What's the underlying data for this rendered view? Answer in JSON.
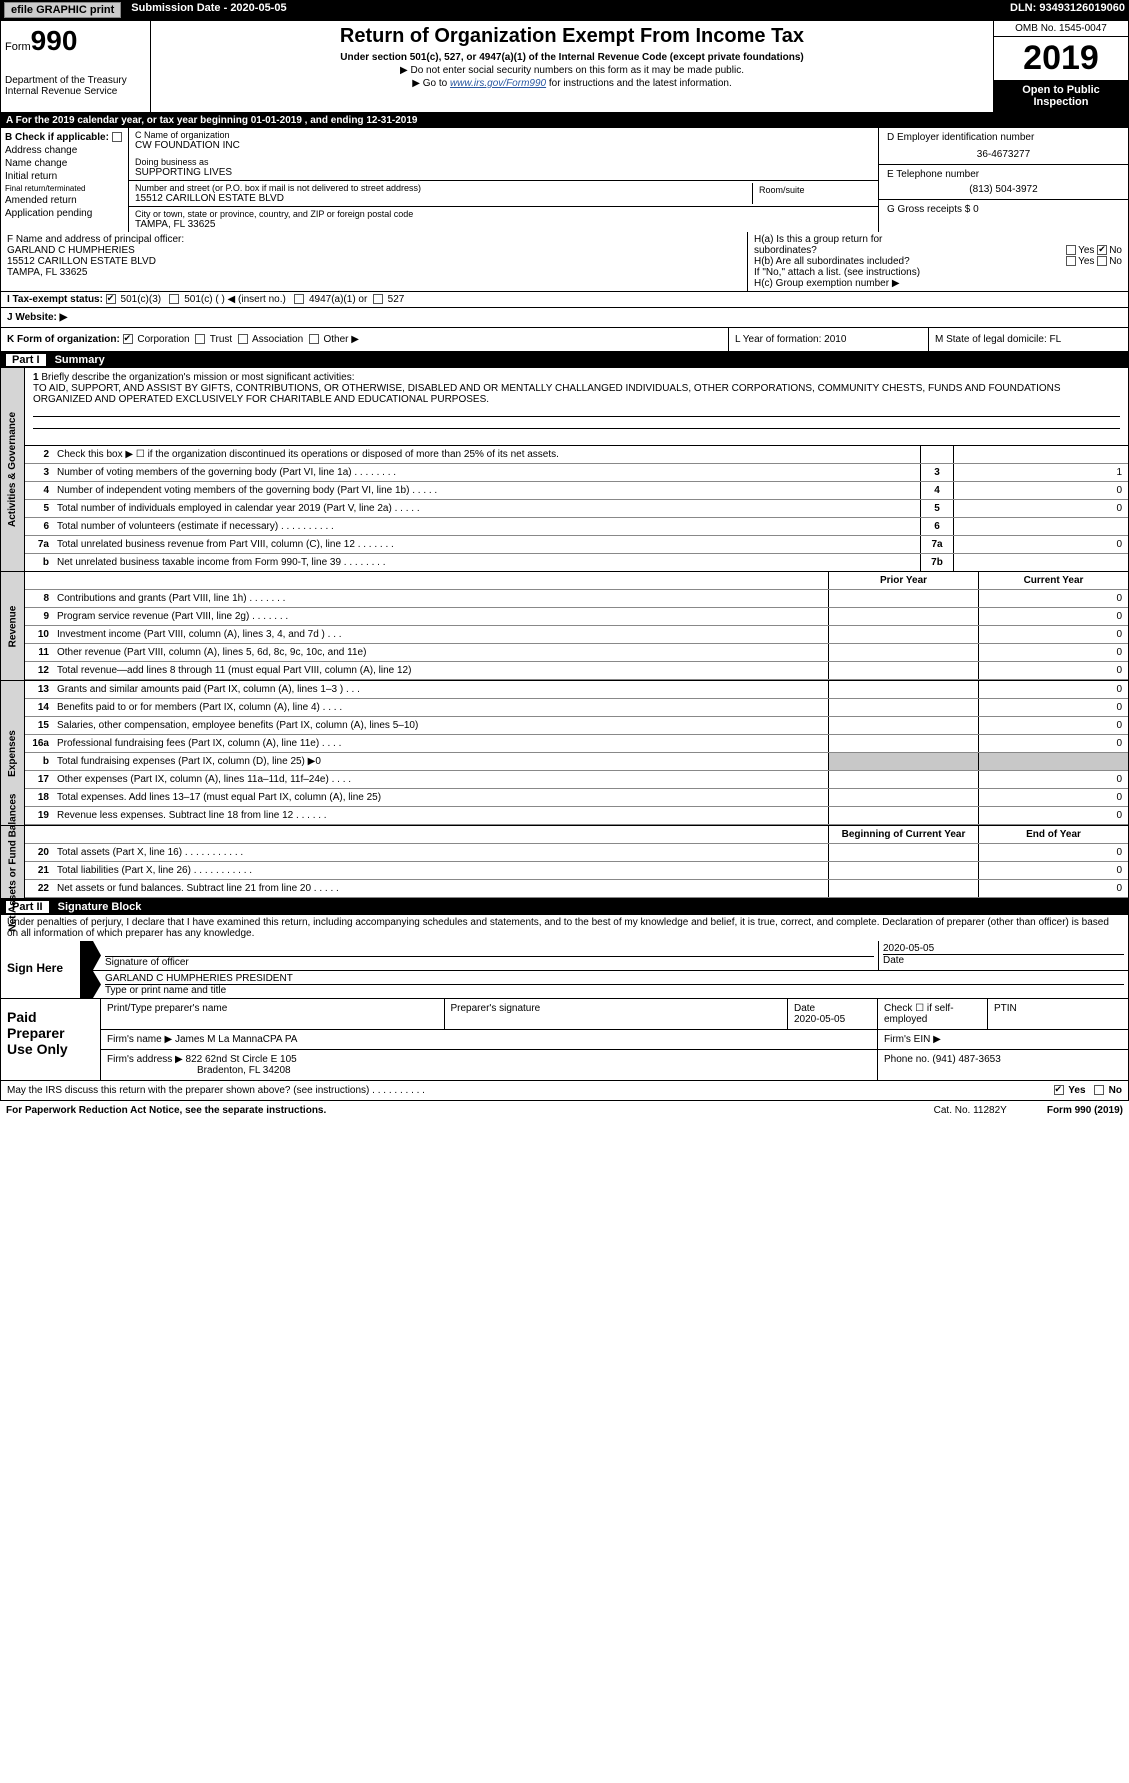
{
  "topbar": {
    "efile": "efile GRAPHIC print",
    "submission": "Submission Date - 2020-05-05",
    "dln": "DLN: 93493126019060"
  },
  "header": {
    "form_prefix": "Form",
    "form_no": "990",
    "dept": "Department of the Treasury",
    "irs": "Internal Revenue Service",
    "title": "Return of Organization Exempt From Income Tax",
    "sub1": "Under section 501(c), 527, or 4947(a)(1) of the Internal Revenue Code (except private foundations)",
    "sub2a": "▶ Do not enter social security numbers on this form as it may be made public.",
    "sub2b_pre": "▶ Go to ",
    "sub2b_link": "www.irs.gov/Form990",
    "sub2b_post": " for instructions and the latest information.",
    "omb": "OMB No. 1545-0047",
    "year": "2019",
    "open": "Open to Public Inspection"
  },
  "calrow": "A   For the 2019 calendar year, or tax year beginning 01-01-2019       , and ending 12-31-2019",
  "boxB": {
    "label": "B  Check if applicable:",
    "items": [
      "Address change",
      "Name change",
      "Initial return",
      "Final return/terminated",
      "Amended return",
      "Application pending"
    ]
  },
  "boxC": {
    "name_lbl": "C Name of organization",
    "name": "CW FOUNDATION INC",
    "dba_lbl": "Doing business as",
    "dba": "SUPPORTING LIVES",
    "addr_lbl": "Number and street (or P.O. box if mail is not delivered to street address)",
    "addr": "15512 CARILLON ESTATE BLVD",
    "room_lbl": "Room/suite",
    "city_lbl": "City or town, state or province, country, and ZIP or foreign postal code",
    "city": "TAMPA, FL  33625"
  },
  "boxD": {
    "lbl": "D Employer identification number",
    "val": "36-4673277"
  },
  "boxE": {
    "lbl": "E Telephone number",
    "val": "(813) 504-3972"
  },
  "boxG": {
    "lbl": "G Gross receipts $ 0"
  },
  "boxF": {
    "lbl": "F  Name and address of principal officer:",
    "name": "GARLAND C HUMPHERIES",
    "addr": "15512 CARILLON ESTATE BLVD",
    "city": "TAMPA, FL  33625"
  },
  "boxH": {
    "ha": "H(a)   Is this a group return for",
    "ha2": "subordinates?",
    "hb": "H(b)   Are all subordinates included?",
    "hb2": "If \"No,\" attach a list. (see instructions)",
    "hc": "H(c)   Group exemption number ▶",
    "yes": "Yes",
    "no": "No"
  },
  "boxI": {
    "lbl": "I    Tax-exempt status:",
    "c3": "501(c)(3)",
    "c": "501(c) (  )  ◀ (insert no.)",
    "a1": "4947(a)(1) or",
    "s527": "527"
  },
  "boxJ": "J    Website: ▶",
  "boxK": {
    "lbl": "K Form of organization:",
    "opts": [
      "Corporation",
      "Trust",
      "Association",
      "Other ▶"
    ],
    "L": "L Year of formation: 2010",
    "M": "M State of legal domicile: FL"
  },
  "part1": {
    "pt": "Part I",
    "title": "Summary"
  },
  "sideLabels": {
    "ag": "Activities & Governance",
    "rev": "Revenue",
    "exp": "Expenses",
    "net": "Net Assets or Fund Balances"
  },
  "mission": {
    "num": "1",
    "lbl": "Briefly describe the organization's mission or most significant activities:",
    "txt": "TO AID, SUPPORT, AND ASSIST BY GIFTS, CONTRIBUTIONS, OR OTHERWISE, DISABLED AND OR MENTALLY CHALLANGED INDIVIDUALS, OTHER CORPORATIONS, COMMUNITY CHESTS, FUNDS AND FOUNDATIONS ORGANIZED AND OPERATED EXCLUSIVELY FOR CHARITABLE AND EDUCATIONAL PURPOSES."
  },
  "ag_rows": [
    {
      "n": "2",
      "d": "Check this box ▶ ☐  if the organization discontinued its operations or disposed of more than 25% of its net assets.",
      "ln": "",
      "v": ""
    },
    {
      "n": "3",
      "d": "Number of voting members of the governing body (Part VI, line 1a)    .    .    .    .    .    .    .    .",
      "ln": "3",
      "v": "1"
    },
    {
      "n": "4",
      "d": "Number of independent voting members of the governing body (Part VI, line 1b)   .    .    .    .    .",
      "ln": "4",
      "v": "0"
    },
    {
      "n": "5",
      "d": "Total number of individuals employed in calendar year 2019 (Part V, line 2a)   .    .    .    .    .",
      "ln": "5",
      "v": "0"
    },
    {
      "n": "6",
      "d": "Total number of volunteers (estimate if necessary)    .    .    .    .    .    .    .    .    .    .",
      "ln": "6",
      "v": ""
    },
    {
      "n": "7a",
      "d": "Total unrelated business revenue from Part VIII, column (C), line 12   .    .    .    .    .    .    .",
      "ln": "7a",
      "v": "0"
    },
    {
      "n": "b",
      "d": "Net unrelated business taxable income from Form 990-T, line 39    .    .    .    .    .    .    .    .",
      "ln": "7b",
      "v": ""
    }
  ],
  "col_hdrs": {
    "prior": "Prior Year",
    "current": "Current Year",
    "begin": "Beginning of Current Year",
    "end": "End of Year"
  },
  "rev_rows": [
    {
      "n": "8",
      "d": "Contributions and grants (Part VIII, line 1h)    .    .    .    .    .    .    .",
      "v1": "",
      "v2": "0"
    },
    {
      "n": "9",
      "d": "Program service revenue (Part VIII, line 2g)    .    .    .    .    .    .    .",
      "v1": "",
      "v2": "0"
    },
    {
      "n": "10",
      "d": "Investment income (Part VIII, column (A), lines 3, 4, and 7d )    .    .    .",
      "v1": "",
      "v2": "0"
    },
    {
      "n": "11",
      "d": "Other revenue (Part VIII, column (A), lines 5, 6d, 8c, 9c, 10c, and 11e)",
      "v1": "",
      "v2": "0"
    },
    {
      "n": "12",
      "d": "Total revenue—add lines 8 through 11 (must equal Part VIII, column (A), line 12)",
      "v1": "",
      "v2": "0"
    }
  ],
  "exp_rows": [
    {
      "n": "13",
      "d": "Grants and similar amounts paid (Part IX, column (A), lines 1–3 )    .    .    .",
      "v1": "",
      "v2": "0"
    },
    {
      "n": "14",
      "d": "Benefits paid to or for members (Part IX, column (A), line 4)    .    .    .    .",
      "v1": "",
      "v2": "0"
    },
    {
      "n": "15",
      "d": "Salaries, other compensation, employee benefits (Part IX, column (A), lines 5–10)",
      "v1": "",
      "v2": "0"
    },
    {
      "n": "16a",
      "d": "Professional fundraising fees (Part IX, column (A), line 11e)    .    .    .    .",
      "v1": "",
      "v2": "0"
    },
    {
      "n": "b",
      "d": "Total fundraising expenses (Part IX, column (D), line 25) ▶0",
      "v1": "shade",
      "v2": "shade"
    },
    {
      "n": "17",
      "d": "Other expenses (Part IX, column (A), lines 11a–11d, 11f–24e)    .    .    .    .",
      "v1": "",
      "v2": "0"
    },
    {
      "n": "18",
      "d": "Total expenses. Add lines 13–17 (must equal Part IX, column (A), line 25)",
      "v1": "",
      "v2": "0"
    },
    {
      "n": "19",
      "d": "Revenue less expenses. Subtract line 18 from line 12    .    .    .    .    .    .",
      "v1": "",
      "v2": "0"
    }
  ],
  "net_rows": [
    {
      "n": "20",
      "d": "Total assets (Part X, line 16)    .    .    .    .    .    .    .    .    .    .    .",
      "v1": "",
      "v2": "0"
    },
    {
      "n": "21",
      "d": "Total liabilities (Part X, line 26)   .    .    .    .    .    .    .    .    .    .    .",
      "v1": "",
      "v2": "0"
    },
    {
      "n": "22",
      "d": "Net assets or fund balances. Subtract line 21 from line 20   .    .    .    .    .",
      "v1": "",
      "v2": "0"
    }
  ],
  "part2": {
    "pt": "Part II",
    "title": "Signature Block"
  },
  "penalty": "Under penalties of perjury, I declare that I have examined this return, including accompanying schedules and statements, and to the best of my knowledge and belief, it is true, correct, and complete. Declaration of preparer (other than officer) is based on all information of which preparer has any knowledge.",
  "sign": {
    "here": "Sign Here",
    "sig_lbl": "Signature of officer",
    "date": "2020-05-05",
    "date_lbl": "Date",
    "name": "GARLAND C HUMPHERIES  PRESIDENT",
    "name_lbl": "Type or print name and title"
  },
  "paid": {
    "lbl": "Paid Preparer Use Only",
    "h1": "Print/Type preparer's name",
    "h2": "Preparer's signature",
    "h3": "Date",
    "d3": "2020-05-05",
    "h4": "Check ☐ if self-employed",
    "h5": "PTIN",
    "firm_lbl": "Firm's name   ▶",
    "firm": "James M La MannaCPA PA",
    "ein_lbl": "Firm's EIN ▶",
    "addr_lbl": "Firm's address ▶",
    "addr": "822 62nd St Circle E 105",
    "addr2": "Bradenton, FL  34208",
    "phone_lbl": "Phone no. (941) 487-3653"
  },
  "discuss": {
    "q": "May the IRS discuss this return with the preparer shown above? (see instructions)    .    .    .    .    .    .    .    .    .    .",
    "yes": "Yes",
    "no": "No"
  },
  "footer": {
    "pra": "For Paperwork Reduction Act Notice, see the separate instructions.",
    "cat": "Cat. No. 11282Y",
    "form": "Form 990 (2019)"
  }
}
